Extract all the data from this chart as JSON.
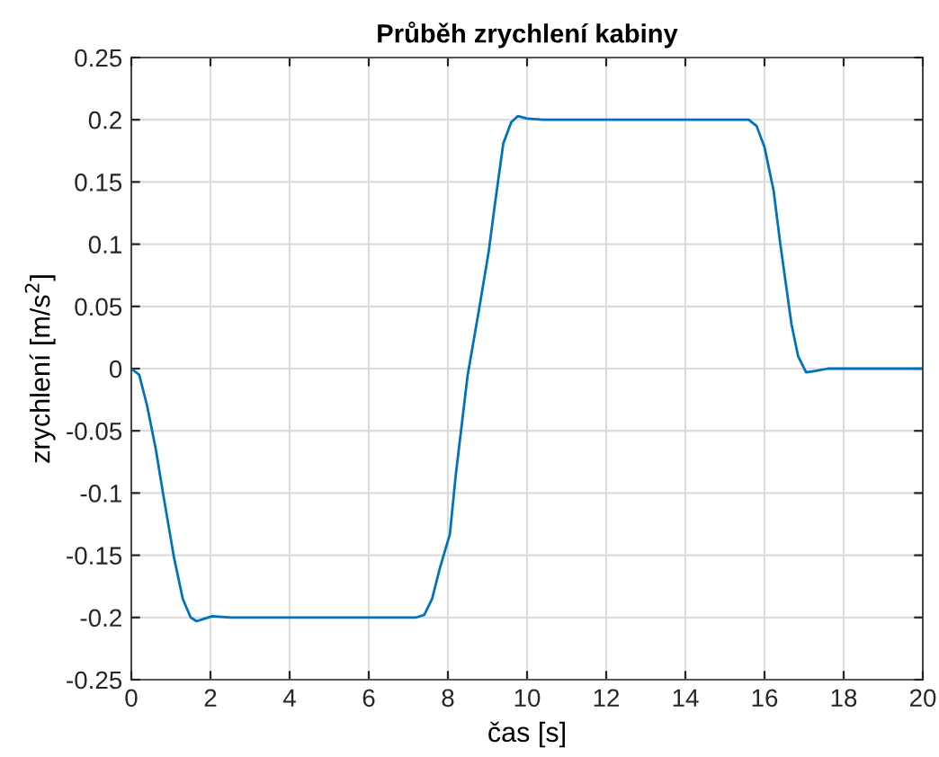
{
  "chart_data": {
    "type": "line",
    "title": "Průběh zrychlení kabiny",
    "xlabel": "čas [s]",
    "ylabel": "zrychlení [m/s$^{2}$]",
    "x": [
      0,
      0.2,
      0.4,
      0.62,
      0.8,
      1.08,
      1.3,
      1.5,
      1.65,
      1.85,
      2.05,
      2.5,
      7.2,
      7.4,
      7.6,
      7.8,
      8.05,
      8.2,
      8.5,
      8.8,
      9.03,
      9.2,
      9.4,
      9.6,
      9.77,
      10.0,
      10.4,
      15.4,
      15.6,
      15.8,
      16.0,
      16.23,
      16.4,
      16.68,
      16.85,
      17.05,
      17.25,
      17.6,
      20
    ],
    "series": [
      {
        "color": "#0072bd",
        "values": [
          0,
          -0.005,
          -0.03,
          -0.065,
          -0.1,
          -0.152,
          -0.185,
          -0.2,
          -0.203,
          -0.201,
          -0.199,
          -0.2,
          -0.2,
          -0.198,
          -0.185,
          -0.16,
          -0.133,
          -0.085,
          -0.005,
          0.05,
          0.094,
          0.135,
          0.181,
          0.198,
          0.203,
          0.201,
          0.2,
          0.2,
          0.2,
          0.195,
          0.178,
          0.143,
          0.1,
          0.036,
          0.01,
          -0.003,
          -0.002,
          0,
          0
        ]
      }
    ],
    "xlim": [
      0,
      20
    ],
    "ylim": [
      -0.25,
      0.25
    ],
    "xticks": [
      0,
      2,
      4,
      6,
      8,
      10,
      12,
      14,
      16,
      18,
      20
    ],
    "yticks": [
      -0.25,
      -0.2,
      -0.15,
      -0.1,
      -0.05,
      0,
      0.05,
      0.1,
      0.15,
      0.2,
      0.25
    ],
    "grid": true,
    "legend": false
  }
}
